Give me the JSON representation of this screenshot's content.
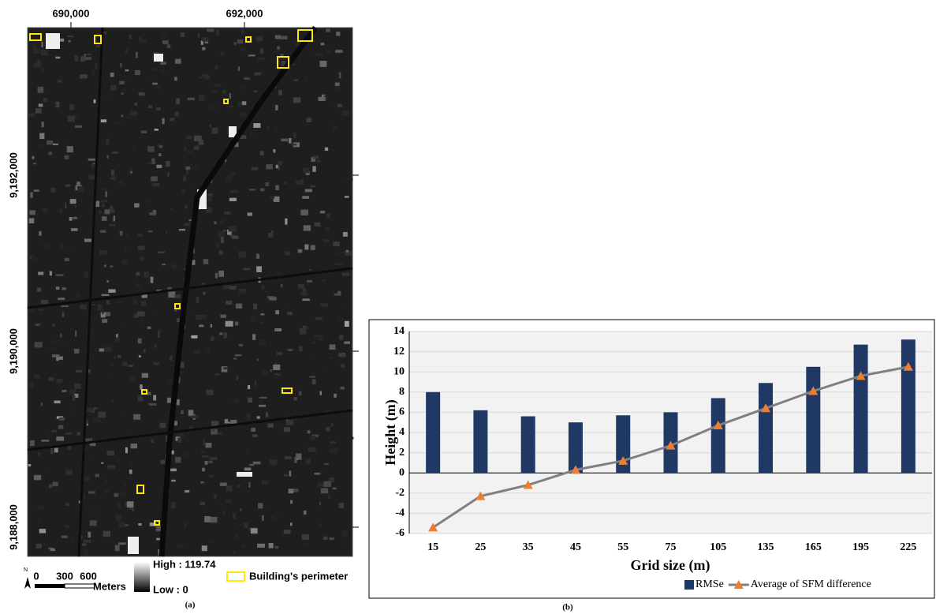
{
  "map": {
    "x_labels": [
      "690,000",
      "692,000"
    ],
    "y_labels": [
      "9,192,000",
      "9,190,000",
      "9,188,000"
    ],
    "north": "N",
    "scale_labels": [
      "0",
      "300",
      "600"
    ],
    "scale_unit": "Meters",
    "high_label": "High : 119.74",
    "low_label": "Low : 0",
    "building_label": "Building's perimeter",
    "caption": "(a)"
  },
  "chart_data": {
    "type": "bar-line",
    "caption": "(b)",
    "x_label": "Grid size (m)",
    "y_label": "Height (m)",
    "categories": [
      "15",
      "25",
      "35",
      "45",
      "55",
      "75",
      "105",
      "135",
      "165",
      "195",
      "225"
    ],
    "series": [
      {
        "name": "RMSe",
        "type": "bar",
        "color": "#1f3864",
        "values": [
          8.0,
          6.2,
          5.6,
          5.0,
          5.7,
          6.0,
          7.4,
          8.9,
          10.5,
          12.7,
          13.2
        ]
      },
      {
        "name": "Average of SFM difference",
        "type": "line",
        "color": "#808080",
        "marker_color": "#ed7d31",
        "values": [
          -5.4,
          -2.3,
          -1.2,
          0.3,
          1.2,
          2.7,
          4.7,
          6.4,
          8.1,
          9.6,
          10.5
        ]
      }
    ],
    "ylim": [
      -6,
      14
    ],
    "yticks": [
      -6,
      -4,
      -2,
      0,
      2,
      4,
      6,
      8,
      10,
      12,
      14
    ],
    "grid": true,
    "legend": "bottom-right"
  }
}
